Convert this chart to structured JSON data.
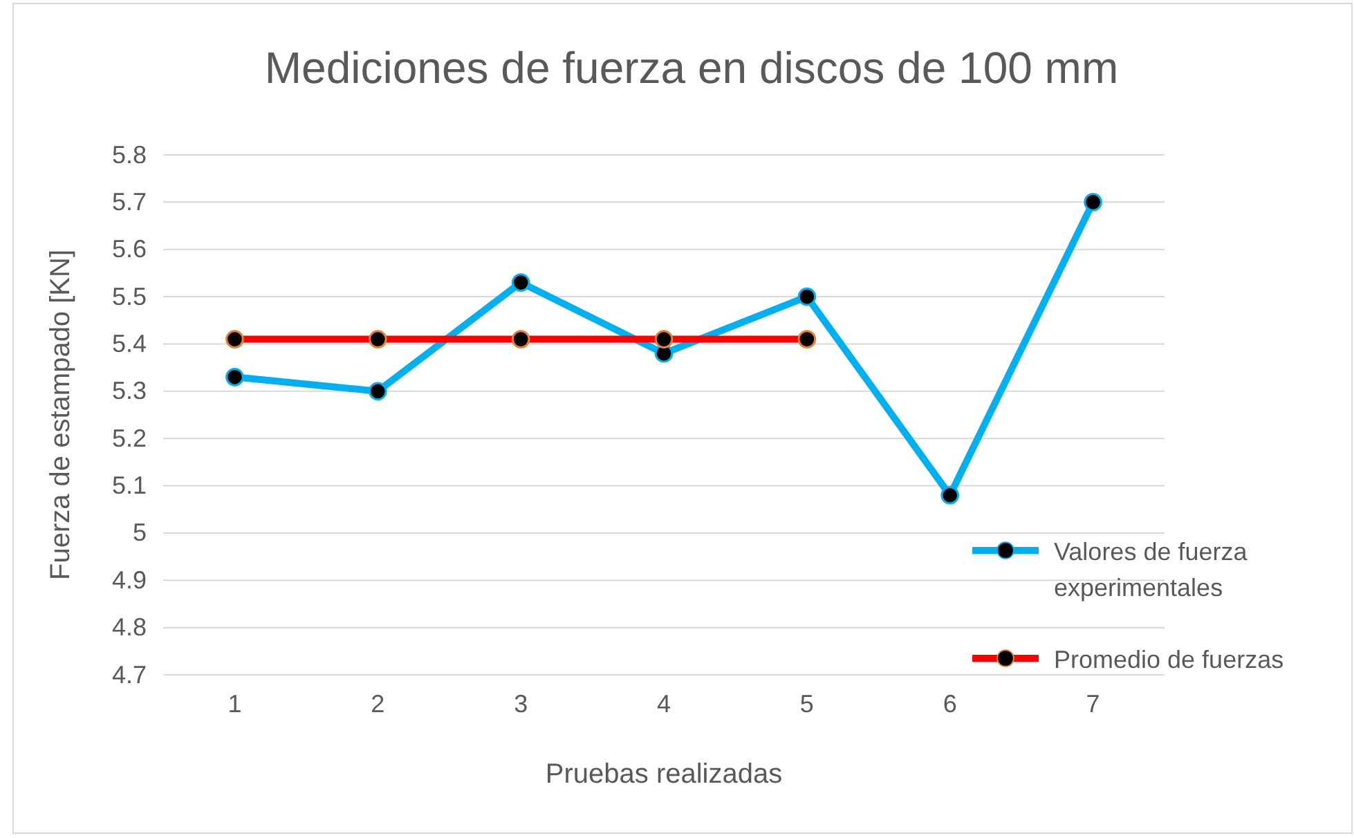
{
  "chart_data": {
    "type": "line",
    "title": "Mediciones de fuerza en discos de 100 mm",
    "xlabel": "Pruebas realizadas",
    "ylabel": "Fuerza de estampado [KN]",
    "categories": [
      "1",
      "2",
      "3",
      "4",
      "5",
      "6",
      "7"
    ],
    "series": [
      {
        "name": "Valores de fuerza experimentales",
        "color": "#00b0f0",
        "values": [
          5.33,
          5.3,
          5.53,
          5.38,
          5.5,
          5.08,
          5.7
        ]
      },
      {
        "name": "Promedio de fuerzas",
        "color": "#ff0000",
        "values": [
          5.41,
          5.41,
          5.41,
          5.41,
          5.41,
          null,
          null
        ]
      }
    ],
    "ylim": [
      4.7,
      5.8
    ],
    "yticks": [
      4.7,
      4.8,
      4.9,
      5,
      5.1,
      5.2,
      5.3,
      5.4,
      5.5,
      5.6,
      5.7,
      5.8
    ],
    "grid": "y",
    "legend": "right",
    "marker": "circle",
    "line_style": "solid"
  }
}
